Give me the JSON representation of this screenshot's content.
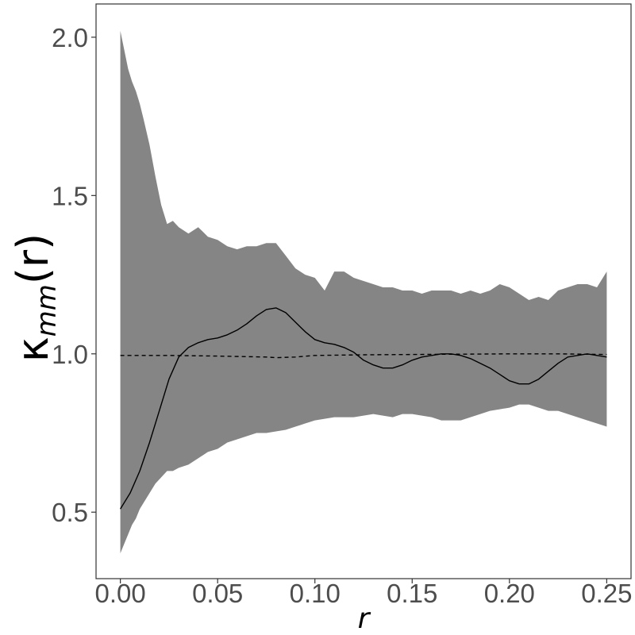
{
  "chart_data": {
    "type": "line",
    "xlabel": "r",
    "ylabel": {
      "base": "κ",
      "subscript": "mm",
      "suffix": "(r)"
    },
    "xlim": [
      -0.0125,
      0.2625
    ],
    "ylim": [
      0.29,
      2.105
    ],
    "x_ticks": [
      0.0,
      0.05,
      0.1,
      0.15,
      0.2,
      0.25
    ],
    "x_tick_labels": [
      "0.00",
      "0.05",
      "0.10",
      "0.15",
      "0.20",
      "0.25"
    ],
    "y_ticks": [
      0.5,
      1.0,
      1.5,
      2.0
    ],
    "y_tick_labels": [
      "0.5",
      "1.0",
      "1.5",
      "2.0"
    ],
    "grid": false,
    "colors": {
      "envelope": "#858585",
      "observed": "#000000",
      "theoretical": "#000000",
      "frame": "#333333",
      "tick_text": "#4d4d4d"
    },
    "envelope": {
      "x": [
        0.0,
        0.002,
        0.004,
        0.006,
        0.008,
        0.01,
        0.012,
        0.015,
        0.018,
        0.021,
        0.024,
        0.027,
        0.03,
        0.035,
        0.04,
        0.045,
        0.05,
        0.055,
        0.06,
        0.065,
        0.07,
        0.075,
        0.08,
        0.085,
        0.09,
        0.095,
        0.1,
        0.105,
        0.11,
        0.115,
        0.12,
        0.125,
        0.13,
        0.135,
        0.14,
        0.145,
        0.15,
        0.155,
        0.16,
        0.165,
        0.17,
        0.175,
        0.18,
        0.185,
        0.19,
        0.195,
        0.2,
        0.205,
        0.21,
        0.215,
        0.22,
        0.225,
        0.23,
        0.235,
        0.24,
        0.245,
        0.25
      ],
      "upper": [
        2.02,
        1.96,
        1.9,
        1.86,
        1.83,
        1.79,
        1.74,
        1.66,
        1.56,
        1.47,
        1.41,
        1.42,
        1.4,
        1.38,
        1.4,
        1.37,
        1.36,
        1.34,
        1.33,
        1.34,
        1.34,
        1.35,
        1.35,
        1.31,
        1.27,
        1.25,
        1.24,
        1.2,
        1.26,
        1.26,
        1.24,
        1.23,
        1.22,
        1.21,
        1.21,
        1.2,
        1.2,
        1.19,
        1.2,
        1.2,
        1.2,
        1.19,
        1.2,
        1.19,
        1.2,
        1.22,
        1.21,
        1.19,
        1.17,
        1.18,
        1.17,
        1.2,
        1.21,
        1.22,
        1.22,
        1.21,
        1.26
      ],
      "lower": [
        0.37,
        0.4,
        0.43,
        0.46,
        0.48,
        0.51,
        0.53,
        0.56,
        0.59,
        0.61,
        0.63,
        0.63,
        0.64,
        0.65,
        0.67,
        0.69,
        0.7,
        0.72,
        0.73,
        0.74,
        0.75,
        0.75,
        0.755,
        0.76,
        0.77,
        0.78,
        0.79,
        0.795,
        0.8,
        0.8,
        0.8,
        0.805,
        0.81,
        0.805,
        0.8,
        0.81,
        0.81,
        0.805,
        0.8,
        0.79,
        0.79,
        0.79,
        0.8,
        0.81,
        0.82,
        0.825,
        0.83,
        0.84,
        0.84,
        0.83,
        0.82,
        0.82,
        0.81,
        0.8,
        0.79,
        0.78,
        0.77
      ]
    },
    "series": [
      {
        "style": "solid",
        "x": [
          0.0,
          0.005,
          0.01,
          0.015,
          0.02,
          0.025,
          0.03,
          0.035,
          0.04,
          0.045,
          0.05,
          0.055,
          0.06,
          0.065,
          0.07,
          0.075,
          0.08,
          0.085,
          0.09,
          0.095,
          0.1,
          0.105,
          0.11,
          0.115,
          0.12,
          0.125,
          0.13,
          0.135,
          0.14,
          0.145,
          0.15,
          0.155,
          0.16,
          0.165,
          0.17,
          0.175,
          0.18,
          0.185,
          0.19,
          0.195,
          0.2,
          0.205,
          0.21,
          0.215,
          0.22,
          0.225,
          0.23,
          0.235,
          0.24,
          0.245,
          0.25
        ],
        "y": [
          0.51,
          0.56,
          0.63,
          0.72,
          0.82,
          0.92,
          0.99,
          1.02,
          1.035,
          1.045,
          1.05,
          1.06,
          1.075,
          1.095,
          1.12,
          1.14,
          1.145,
          1.13,
          1.1,
          1.07,
          1.045,
          1.035,
          1.03,
          1.02,
          1.005,
          0.98,
          0.965,
          0.955,
          0.955,
          0.965,
          0.98,
          0.99,
          0.995,
          1.0,
          1.0,
          0.995,
          0.985,
          0.97,
          0.955,
          0.935,
          0.915,
          0.905,
          0.905,
          0.92,
          0.945,
          0.97,
          0.99,
          0.995,
          1.0,
          0.995,
          0.99
        ]
      },
      {
        "style": "dashed",
        "x": [
          0.0,
          0.025,
          0.05,
          0.075,
          0.08,
          0.09,
          0.1,
          0.125,
          0.15,
          0.175,
          0.2,
          0.225,
          0.25
        ],
        "y": [
          0.995,
          0.995,
          0.993,
          0.99,
          0.988,
          0.99,
          0.995,
          0.997,
          0.998,
          0.999,
          1.0,
          1.0,
          0.998
        ]
      }
    ]
  }
}
